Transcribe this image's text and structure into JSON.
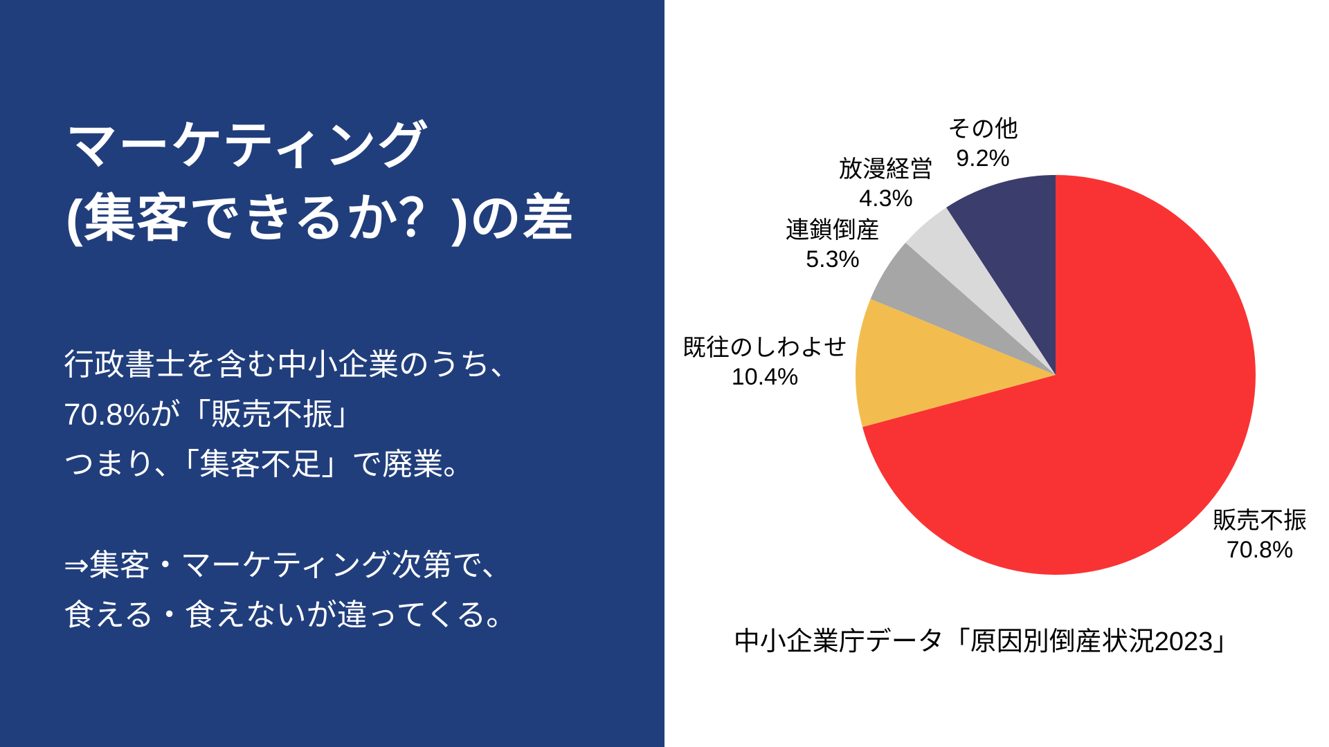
{
  "left_panel": {
    "title_line1": "マーケティング",
    "title_line2": "(集客できるか？)の差",
    "para1_line1": "行政書士を含む中小企業のうち、",
    "para1_line2": "70.8%が「販売不振」",
    "para1_line3": "つまり、「集客不足」で廃業。",
    "para2_line1": "⇒集客・マーケティング次第で、",
    "para2_line2": "食える・食えないが違ってくる。"
  },
  "chart": {
    "caption": "中小企業庁データ「原因別倒産状況2023」",
    "labels": [
      {
        "name": "販売不振",
        "value": "70.8%"
      },
      {
        "name": "既往のしわよせ",
        "value": "10.4%"
      },
      {
        "name": "連鎖倒産",
        "value": "5.3%"
      },
      {
        "name": "放漫経営",
        "value": "4.3%"
      },
      {
        "name": "その他",
        "value": "9.2%"
      }
    ]
  },
  "chart_data": {
    "type": "pie",
    "title": "",
    "categories": [
      "販売不振",
      "既往のしわよせ",
      "連鎖倒産",
      "放漫経営",
      "その他"
    ],
    "values": [
      70.8,
      10.4,
      5.3,
      4.3,
      9.2
    ],
    "unit": "%",
    "colors": [
      "#f93334",
      "#f2bd4e",
      "#a6a6a6",
      "#d9d9d9",
      "#3b3d6c"
    ],
    "start_angle_deg": 0,
    "direction": "clockwise",
    "legend_position": "none",
    "data_labels": "outside",
    "caption": "中小企業庁データ「原因別倒産状況2023」"
  },
  "colors": {
    "panel_bg": "#213e7c",
    "panel_text": "#ffffff",
    "chart_text": "#000000",
    "background": "#ffffff"
  }
}
